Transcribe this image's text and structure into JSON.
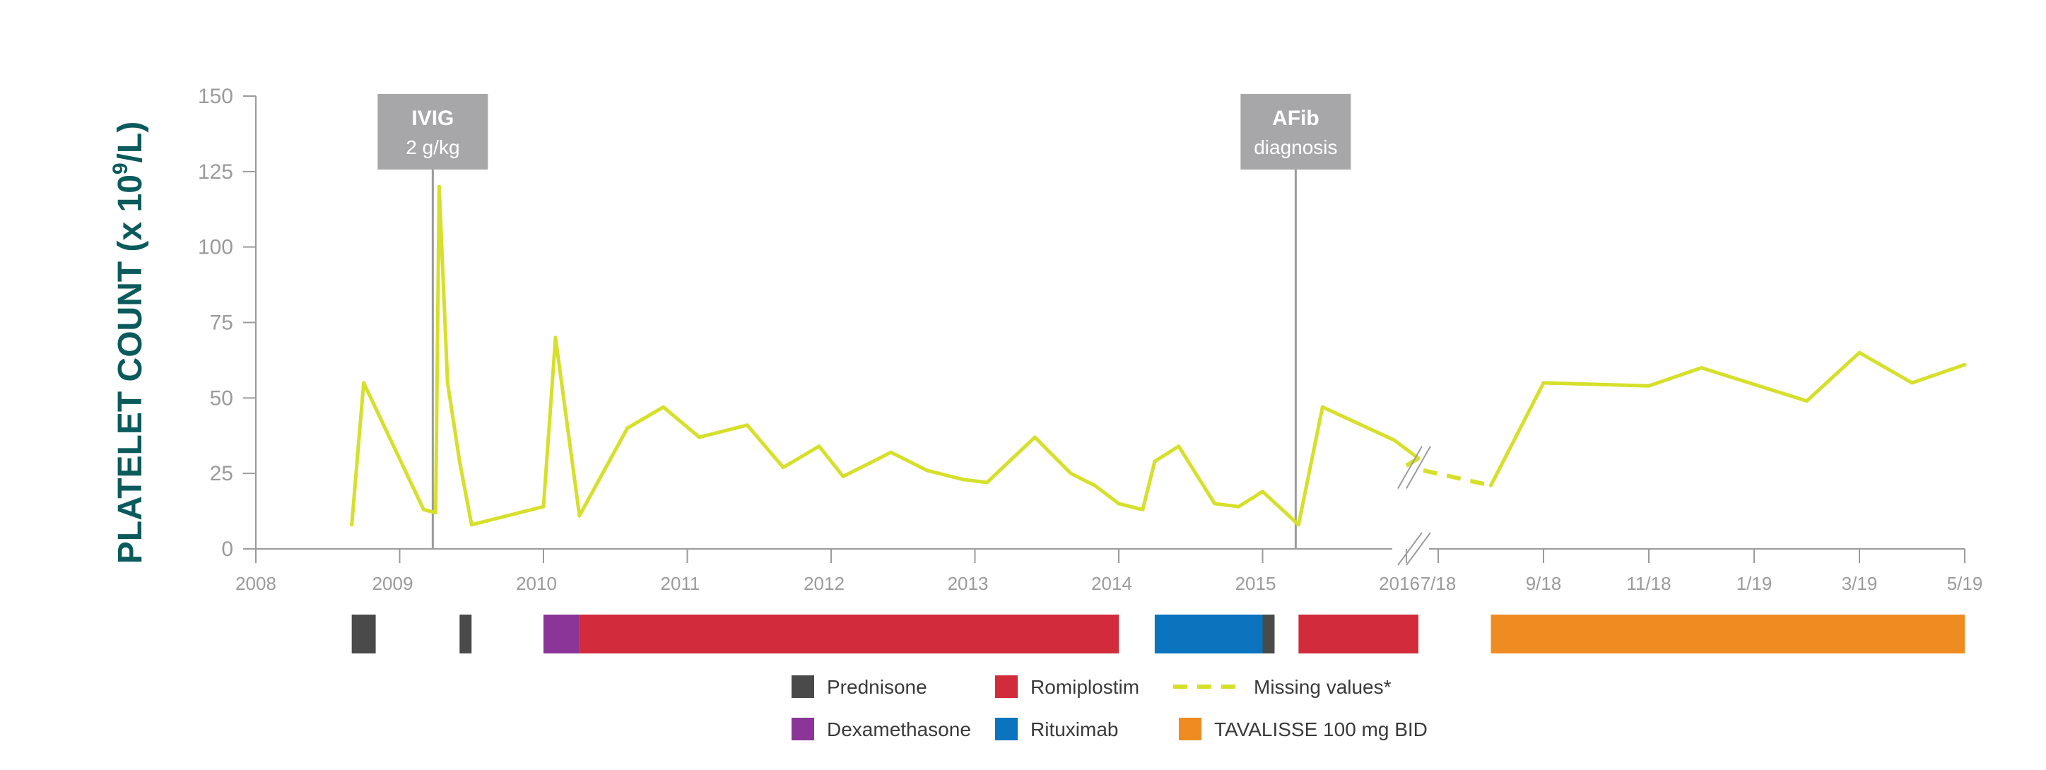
{
  "chart_data": {
    "type": "line",
    "ylabel_main": "PLATELET COUNT (x 10",
    "ylabel_sup": "9",
    "ylabel_tail": "/L)",
    "y_ticks": [
      0,
      25,
      50,
      75,
      100,
      125,
      150
    ],
    "ylim": [
      0,
      150
    ],
    "x_tick_labels": [
      "2008",
      "2009",
      "2010",
      "2011",
      "2012",
      "2013",
      "2014",
      "2015",
      "2016",
      "7/18",
      "9/18",
      "11/18",
      "1/19",
      "3/19",
      "5/19"
    ],
    "axis_break": "between 2016 and 7/18",
    "grid": false,
    "series": [
      {
        "segment": "2008-2016",
        "x": [
          "2008-09",
          "2008-10",
          "2009-03",
          "2009-04",
          "2009-04",
          "2009-05",
          "2009-06",
          "2009-07",
          "2010-01",
          "2010-02",
          "2010-04",
          "2010-08",
          "2010-11",
          "2011-02",
          "2011-06",
          "2011-09",
          "2011-12",
          "2012-02",
          "2012-06",
          "2012-09",
          "2012-12",
          "2013-02",
          "2013-06",
          "2013-09",
          "2013-11",
          "2014-01",
          "2014-03",
          "2014-04",
          "2014-06",
          "2014-09",
          "2014-11",
          "2015-01",
          "2015-04",
          "2015-06",
          "2015-12",
          "2016-02"
        ],
        "values": [
          8,
          55,
          13,
          12,
          120,
          55,
          29,
          8,
          14,
          70,
          11,
          40,
          47,
          37,
          41,
          27,
          34,
          24,
          32,
          26,
          23,
          22,
          37,
          25,
          21,
          15,
          13,
          29,
          34,
          15,
          14,
          19,
          8,
          47,
          36,
          30
        ]
      },
      {
        "segment": "7/18-5/19",
        "x": [
          "2018-08",
          "2018-09",
          "2018-11",
          "2018-12",
          "2019-02",
          "2019-03",
          "2019-04",
          "2019-05"
        ],
        "values": [
          21,
          55,
          54,
          60,
          49,
          65,
          55,
          61
        ]
      }
    ],
    "missing_segment": {
      "from": "2016-02",
      "to": "2018-08",
      "values": [
        30,
        21
      ]
    },
    "events": [
      {
        "title": "IVIG",
        "subtitle": "2 g/kg",
        "date": "2009-04"
      },
      {
        "title": "AFib",
        "subtitle": "diagnosis",
        "date": "2015-04"
      }
    ],
    "treatments": [
      {
        "name": "Prednisone",
        "start": "2008-09",
        "end": "2008-11"
      },
      {
        "name": "Prednisone",
        "start": "2009-06",
        "end": "2009-07"
      },
      {
        "name": "Dexamethasone",
        "start": "2010-01",
        "end": "2010-04"
      },
      {
        "name": "Romiplostim",
        "start": "2010-04",
        "end": "2014-01"
      },
      {
        "name": "Rituximab",
        "start": "2014-04",
        "end": "2015-01"
      },
      {
        "name": "Prednisone",
        "start": "2015-01",
        "end": "2015-02"
      },
      {
        "name": "Romiplostim",
        "start": "2015-04",
        "end": "2016-02"
      },
      {
        "name": "TAVALISSE 100 mg BID",
        "start": "2018-08",
        "end": "2019-05"
      }
    ],
    "legend": [
      {
        "label": "Prednisone",
        "color": "#4a4a4a",
        "kind": "box"
      },
      {
        "label": "Romiplostim",
        "color": "#d22b3c",
        "kind": "box"
      },
      {
        "label": "Missing values*",
        "color": "#d6e02a",
        "kind": "dash"
      },
      {
        "label": "Dexamethasone",
        "color": "#8a3597",
        "kind": "box"
      },
      {
        "label": "Rituximab",
        "color": "#0a74bf",
        "kind": "box"
      },
      {
        "label": "TAVALISSE 100 mg BID",
        "color": "#ef8c21",
        "kind": "box"
      }
    ],
    "colors": {
      "line": "#d6e02a",
      "axis": "#9b9b9b",
      "event_box": "#a7a7a9",
      "event_line": "#9b9b9b",
      "ylabel": "#0b5a5c",
      "Prednisone": "#4a4a4a",
      "Dexamethasone": "#8a3597",
      "Romiplostim": "#d22b3c",
      "Rituximab": "#0a74bf",
      "TAVALISSE 100 mg BID": "#ef8c21"
    }
  }
}
